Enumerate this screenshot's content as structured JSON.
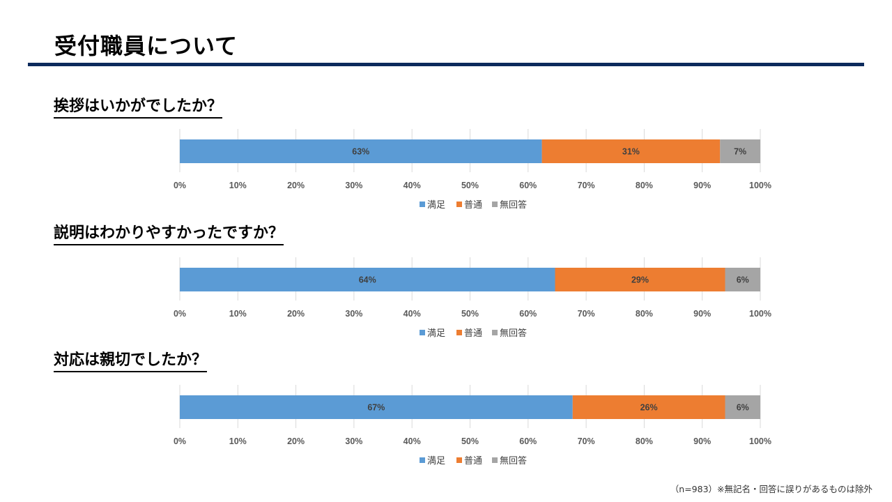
{
  "title": "受付職員について",
  "footnote": "（n=983）※無記名・回答に誤りがあるものは除外",
  "colors": {
    "satisfied": "#5b9bd5",
    "normal": "#ed7d31",
    "no_answer": "#a5a5a5",
    "accent": "#0d2a5c"
  },
  "chart_data": [
    {
      "type": "bar",
      "orientation": "horizontal-stacked-100",
      "title": "挨拶はいかがでしたか？",
      "series": [
        {
          "name": "満足",
          "values": [
            63
          ]
        },
        {
          "name": "普通",
          "values": [
            31
          ]
        },
        {
          "name": "無回答",
          "values": [
            7
          ]
        }
      ],
      "data_labels": [
        "63%",
        "31%",
        "7%"
      ],
      "xlim": [
        0,
        100
      ],
      "x_ticks": [
        "0%",
        "10%",
        "20%",
        "30%",
        "40%",
        "50%",
        "60%",
        "70%",
        "80%",
        "90%",
        "100%"
      ],
      "grid": true,
      "legend": "bottom"
    },
    {
      "type": "bar",
      "orientation": "horizontal-stacked-100",
      "title": "説明はわかりやすかったですか？",
      "series": [
        {
          "name": "満足",
          "values": [
            64
          ]
        },
        {
          "name": "普通",
          "values": [
            29
          ]
        },
        {
          "name": "無回答",
          "values": [
            6
          ]
        }
      ],
      "data_labels": [
        "64%",
        "29%",
        "6%"
      ],
      "xlim": [
        0,
        100
      ],
      "x_ticks": [
        "0%",
        "10%",
        "20%",
        "30%",
        "40%",
        "50%",
        "60%",
        "70%",
        "80%",
        "90%",
        "100%"
      ],
      "grid": true,
      "legend": "bottom"
    },
    {
      "type": "bar",
      "orientation": "horizontal-stacked-100",
      "title": "対応は親切でしたか？",
      "series": [
        {
          "name": "満足",
          "values": [
            67
          ]
        },
        {
          "name": "普通",
          "values": [
            26
          ]
        },
        {
          "name": "無回答",
          "values": [
            6
          ]
        }
      ],
      "data_labels": [
        "67%",
        "26%",
        "6%"
      ],
      "xlim": [
        0,
        100
      ],
      "x_ticks": [
        "0%",
        "10%",
        "20%",
        "30%",
        "40%",
        "50%",
        "60%",
        "70%",
        "80%",
        "90%",
        "100%"
      ],
      "grid": true,
      "legend": "bottom"
    }
  ]
}
